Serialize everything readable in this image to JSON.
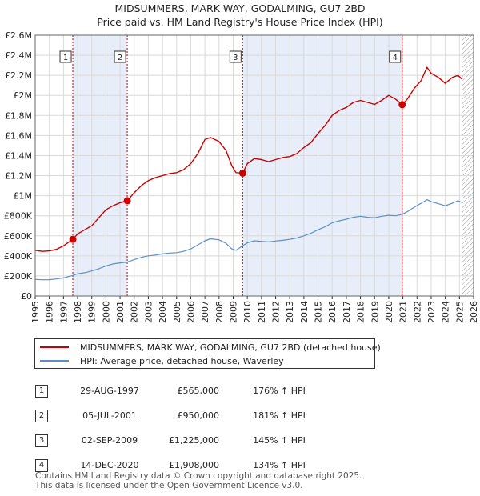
{
  "title": "MIDSUMMERS, MARK WAY, GODALMING, GU7 2BD",
  "subtitle": "Price paid vs. HM Land Registry's House Price Index (HPI)",
  "chart_data": {
    "type": "line",
    "y_ticks": [
      "£0",
      "£200K",
      "£400K",
      "£600K",
      "£800K",
      "£1M",
      "£1.2M",
      "£1.4M",
      "£1.6M",
      "£1.8M",
      "£2M",
      "£2.2M",
      "£2.4M",
      "£2.6M"
    ],
    "x_ticks": [
      "1995",
      "1996",
      "1997",
      "1998",
      "1999",
      "2000",
      "2001",
      "2002",
      "2003",
      "2004",
      "2005",
      "2006",
      "2007",
      "2008",
      "2009",
      "2010",
      "2011",
      "2012",
      "2013",
      "2014",
      "2015",
      "2016",
      "2017",
      "2018",
      "2019",
      "2020",
      "2021",
      "2022",
      "2023",
      "2024",
      "2025",
      "2026"
    ],
    "xlim": [
      1995,
      2026
    ],
    "ylim": [
      0,
      2600000
    ],
    "grid": true,
    "series": [
      {
        "name": "MIDSUMMERS, MARK WAY, GODALMING, GU7 2BD (detached house)",
        "color": "#cc0000",
        "points": [
          [
            1995.0,
            455000
          ],
          [
            1995.5,
            445000
          ],
          [
            1996.0,
            450000
          ],
          [
            1996.5,
            465000
          ],
          [
            1997.0,
            500000
          ],
          [
            1997.66,
            565000
          ],
          [
            1998.0,
            620000
          ],
          [
            1998.5,
            660000
          ],
          [
            1999.0,
            700000
          ],
          [
            1999.5,
            780000
          ],
          [
            2000.0,
            860000
          ],
          [
            2000.5,
            900000
          ],
          [
            2001.0,
            930000
          ],
          [
            2001.51,
            950000
          ],
          [
            2002.0,
            1030000
          ],
          [
            2002.5,
            1100000
          ],
          [
            2003.0,
            1150000
          ],
          [
            2003.5,
            1180000
          ],
          [
            2004.0,
            1200000
          ],
          [
            2004.5,
            1220000
          ],
          [
            2005.0,
            1230000
          ],
          [
            2005.5,
            1260000
          ],
          [
            2006.0,
            1320000
          ],
          [
            2006.5,
            1420000
          ],
          [
            2007.0,
            1560000
          ],
          [
            2007.4,
            1580000
          ],
          [
            2008.0,
            1540000
          ],
          [
            2008.5,
            1450000
          ],
          [
            2008.9,
            1300000
          ],
          [
            2009.2,
            1230000
          ],
          [
            2009.67,
            1225000
          ],
          [
            2010.0,
            1320000
          ],
          [
            2010.5,
            1370000
          ],
          [
            2011.0,
            1360000
          ],
          [
            2011.5,
            1340000
          ],
          [
            2012.0,
            1360000
          ],
          [
            2012.5,
            1380000
          ],
          [
            2013.0,
            1390000
          ],
          [
            2013.5,
            1420000
          ],
          [
            2014.0,
            1480000
          ],
          [
            2014.5,
            1530000
          ],
          [
            2015.0,
            1620000
          ],
          [
            2015.5,
            1700000
          ],
          [
            2016.0,
            1800000
          ],
          [
            2016.5,
            1850000
          ],
          [
            2017.0,
            1880000
          ],
          [
            2017.5,
            1930000
          ],
          [
            2018.0,
            1950000
          ],
          [
            2018.5,
            1930000
          ],
          [
            2019.0,
            1910000
          ],
          [
            2019.5,
            1950000
          ],
          [
            2020.0,
            2000000
          ],
          [
            2020.5,
            1960000
          ],
          [
            2020.95,
            1908000
          ],
          [
            2021.3,
            1960000
          ],
          [
            2021.8,
            2070000
          ],
          [
            2022.3,
            2150000
          ],
          [
            2022.7,
            2280000
          ],
          [
            2023.0,
            2220000
          ],
          [
            2023.5,
            2180000
          ],
          [
            2024.0,
            2120000
          ],
          [
            2024.5,
            2180000
          ],
          [
            2024.9,
            2200000
          ],
          [
            2025.2,
            2160000
          ]
        ]
      },
      {
        "name": "HPI: Average price, detached house, Waverley",
        "color": "#5b8fc9",
        "points": [
          [
            1995.0,
            165000
          ],
          [
            1995.5,
            162000
          ],
          [
            1996.0,
            163000
          ],
          [
            1996.5,
            170000
          ],
          [
            1997.0,
            180000
          ],
          [
            1997.66,
            205000
          ],
          [
            1998.0,
            222000
          ],
          [
            1998.5,
            232000
          ],
          [
            1999.0,
            250000
          ],
          [
            1999.5,
            272000
          ],
          [
            2000.0,
            300000
          ],
          [
            2000.5,
            320000
          ],
          [
            2001.0,
            330000
          ],
          [
            2001.51,
            338000
          ],
          [
            2002.0,
            362000
          ],
          [
            2002.5,
            385000
          ],
          [
            2003.0,
            400000
          ],
          [
            2003.5,
            408000
          ],
          [
            2004.0,
            420000
          ],
          [
            2004.5,
            428000
          ],
          [
            2005.0,
            432000
          ],
          [
            2005.5,
            445000
          ],
          [
            2006.0,
            470000
          ],
          [
            2006.5,
            510000
          ],
          [
            2007.0,
            550000
          ],
          [
            2007.4,
            570000
          ],
          [
            2008.0,
            560000
          ],
          [
            2008.5,
            525000
          ],
          [
            2008.9,
            470000
          ],
          [
            2009.2,
            455000
          ],
          [
            2009.67,
            500000
          ],
          [
            2010.0,
            530000
          ],
          [
            2010.5,
            550000
          ],
          [
            2011.0,
            545000
          ],
          [
            2011.5,
            540000
          ],
          [
            2012.0,
            548000
          ],
          [
            2012.5,
            555000
          ],
          [
            2013.0,
            565000
          ],
          [
            2013.5,
            578000
          ],
          [
            2014.0,
            600000
          ],
          [
            2014.5,
            625000
          ],
          [
            2015.0,
            660000
          ],
          [
            2015.5,
            690000
          ],
          [
            2016.0,
            730000
          ],
          [
            2016.5,
            750000
          ],
          [
            2017.0,
            765000
          ],
          [
            2017.5,
            785000
          ],
          [
            2018.0,
            795000
          ],
          [
            2018.5,
            785000
          ],
          [
            2019.0,
            780000
          ],
          [
            2019.5,
            795000
          ],
          [
            2020.0,
            805000
          ],
          [
            2020.5,
            800000
          ],
          [
            2020.95,
            815000
          ],
          [
            2021.3,
            840000
          ],
          [
            2021.8,
            885000
          ],
          [
            2022.3,
            925000
          ],
          [
            2022.7,
            960000
          ],
          [
            2023.0,
            940000
          ],
          [
            2023.5,
            920000
          ],
          [
            2024.0,
            900000
          ],
          [
            2024.5,
            925000
          ],
          [
            2024.9,
            950000
          ],
          [
            2025.2,
            930000
          ]
        ]
      }
    ],
    "sales": [
      {
        "id": "1",
        "x": 1997.66,
        "y": 565000
      },
      {
        "id": "2",
        "x": 2001.51,
        "y": 950000
      },
      {
        "id": "3",
        "x": 2009.67,
        "y": 1225000
      },
      {
        "id": "4",
        "x": 2020.95,
        "y": 1908000
      }
    ],
    "shaded_ranges": [
      [
        1997.66,
        2001.51
      ],
      [
        2009.67,
        2020.95
      ]
    ],
    "hatched_from": 2025.2
  },
  "legend": {
    "property_label": "MIDSUMMERS, MARK WAY, GODALMING, GU7 2BD (detached house)",
    "hpi_label": "HPI: Average price, detached house, Waverley"
  },
  "sales_table": [
    {
      "num": "1",
      "date": "29-AUG-1997",
      "price": "£565,000",
      "hpi": "176% ↑ HPI"
    },
    {
      "num": "2",
      "date": "05-JUL-2001",
      "price": "£950,000",
      "hpi": "181% ↑ HPI"
    },
    {
      "num": "3",
      "date": "02-SEP-2009",
      "price": "£1,225,000",
      "hpi": "145% ↑ HPI"
    },
    {
      "num": "4",
      "date": "14-DEC-2020",
      "price": "£1,908,000",
      "hpi": "134% ↑ HPI"
    }
  ],
  "footer": {
    "line1": "Contains HM Land Registry data © Crown copyright and database right 2025.",
    "line2": "This data is licensed under the Open Government Licence v3.0."
  },
  "colors": {
    "property": "#cc0000",
    "hpi": "#5b8fc9",
    "shade": "#e8eef9",
    "grid": "#d9d9d9"
  }
}
